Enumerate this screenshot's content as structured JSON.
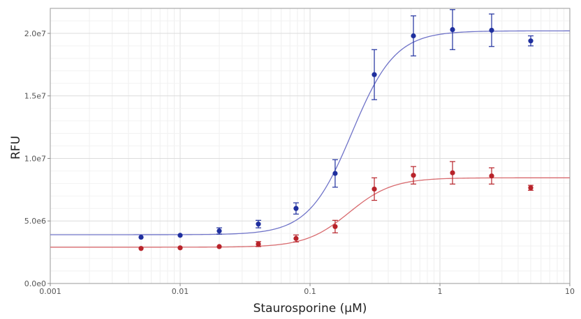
{
  "chart_data": {
    "type": "scatter",
    "title": "",
    "xlabel": "Staurosporine (µM)",
    "ylabel": "RFU",
    "xscale": "log",
    "xlim": [
      0.001,
      10
    ],
    "ylim": [
      0,
      22000000
    ],
    "grid": true,
    "legend": "none",
    "x_ticks": [
      {
        "value": 0.001,
        "label": "0.001"
      },
      {
        "value": 0.01,
        "label": "0.01"
      },
      {
        "value": 0.1,
        "label": "0.1"
      },
      {
        "value": 1,
        "label": "1"
      },
      {
        "value": 10,
        "label": "10"
      }
    ],
    "y_ticks": [
      {
        "value": 0,
        "label": "0.0e0"
      },
      {
        "value": 5000000,
        "label": "5.0e6"
      },
      {
        "value": 10000000,
        "label": "1.0e7"
      },
      {
        "value": 15000000,
        "label": "1.5e7"
      },
      {
        "value": 20000000,
        "label": "2.0e7"
      }
    ],
    "series": [
      {
        "color": "#1f2f9e",
        "curve_color": "#6f73c8",
        "x": [
          0.005,
          0.01,
          0.02,
          0.04,
          0.078,
          0.156,
          0.3125,
          0.625,
          1.25,
          2.5,
          5
        ],
        "y": [
          3700000,
          3850000,
          4200000,
          4750000,
          6000000,
          8800000,
          16700000,
          19800000,
          20300000,
          20250000,
          19400000
        ],
        "error": [
          0,
          0,
          250000,
          300000,
          450000,
          1100000,
          2000000,
          1600000,
          1600000,
          1300000,
          400000
        ],
        "fit": {
          "bottom": 3900000,
          "top": 20200000,
          "ec50": 0.21,
          "hill": 2.6
        }
      },
      {
        "color": "#b8232a",
        "curve_color": "#d86a6e",
        "x": [
          0.005,
          0.01,
          0.02,
          0.04,
          0.078,
          0.156,
          0.3125,
          0.625,
          1.25,
          2.5,
          5
        ],
        "y": [
          2800000,
          2850000,
          2950000,
          3150000,
          3600000,
          4550000,
          7550000,
          8650000,
          8850000,
          8600000,
          7650000
        ],
        "error": [
          0,
          0,
          0,
          200000,
          280000,
          500000,
          900000,
          700000,
          900000,
          650000,
          200000
        ],
        "fit": {
          "bottom": 2900000,
          "top": 8450000,
          "ec50": 0.2,
          "hill": 2.6
        }
      }
    ]
  }
}
